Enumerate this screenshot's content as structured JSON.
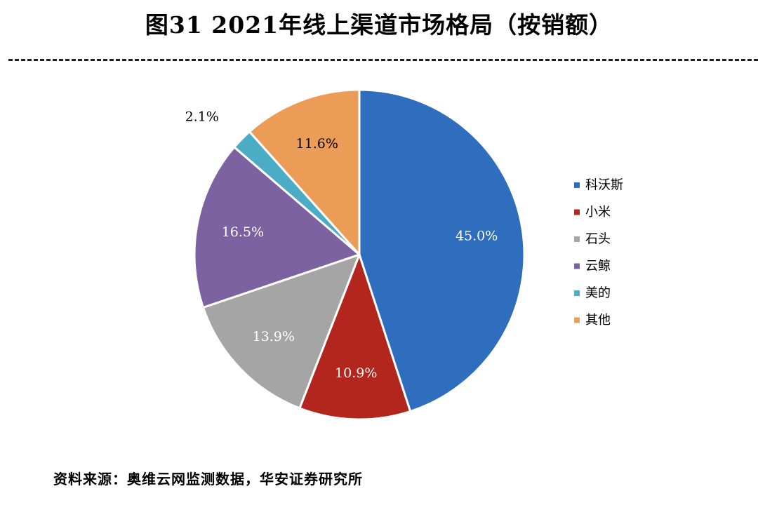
{
  "title": "图31 2021年线上渠道市场格局（按销额）",
  "source": "资料来源：奥维云网监测数据，华安证券研究所",
  "chart_data": {
    "type": "pie",
    "categories": [
      "科沃斯",
      "小米",
      "石头",
      "云鲸",
      "美的",
      "其他"
    ],
    "values": [
      45.0,
      10.9,
      13.9,
      16.5,
      2.1,
      11.6
    ],
    "labels": [
      "45.0%",
      "10.9%",
      "13.9%",
      "16.5%",
      "2.1%",
      "11.6%"
    ],
    "colors": [
      "#2E6EBD",
      "#B2261E",
      "#A5A5A5",
      "#7C62A1",
      "#4BACC6",
      "#EB9C57"
    ],
    "label_colors": [
      "#ffffff",
      "#ffffff",
      "#ffffff",
      "#ffffff",
      "#000000",
      "#000000"
    ],
    "start_angle_deg": 0,
    "direction": "clockwise",
    "legend_position": "right"
  }
}
